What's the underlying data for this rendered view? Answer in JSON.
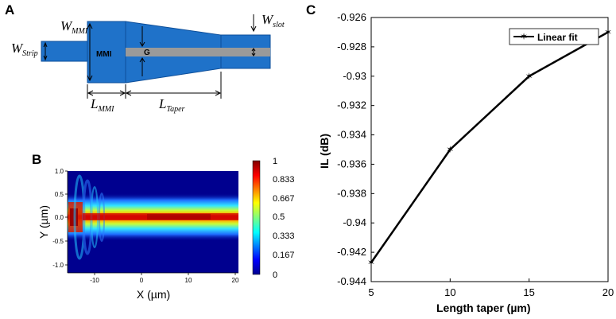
{
  "panel_labels": {
    "a": "A",
    "b": "B",
    "c": "C"
  },
  "diagram_a": {
    "labels": {
      "w_mmi_base": "W",
      "w_mmi_sub": "MMI",
      "w_strip_base": "W",
      "w_strip_sub": "Strip",
      "w_slot_base": "W",
      "w_slot_sub": "slot",
      "l_mmi_base": "L",
      "l_mmi_sub": "MMI",
      "l_taper_base": "L",
      "l_taper_sub": "Taper",
      "mmi_text": "MMI",
      "gap_text": "G"
    },
    "colors": {
      "waveguide": "#1f72c9",
      "waveguide_edge": "#0e4f9a",
      "slot": "#9a9a9a"
    }
  },
  "panel_b": {
    "xlabel": "X (µm)",
    "ylabel": "Y (µm)",
    "xticks": [
      "-10",
      "0",
      "10",
      "20"
    ],
    "yticks": [
      "1.0",
      "0.5",
      "0.0",
      "-0.5",
      "-1.0"
    ],
    "colorbar_ticks": [
      "1",
      "0.833",
      "0.667",
      "0.5",
      "0.333",
      "0.167",
      "0"
    ]
  },
  "chart_data": {
    "type": "line",
    "title": "",
    "xlabel": "Length taper (µm)",
    "ylabel": "IL (dB)",
    "x": [
      5,
      10,
      15,
      20
    ],
    "series": [
      {
        "name": "Linear fit",
        "values": [
          -0.9427,
          -0.935,
          -0.93,
          -0.927
        ],
        "color": "#000000",
        "marker_color": "#ff0000"
      }
    ],
    "xlim": [
      5,
      20
    ],
    "ylim": [
      -0.944,
      -0.926
    ],
    "xticks": [
      "5",
      "10",
      "15",
      "20"
    ],
    "yticks": [
      "-0.926",
      "-0.928",
      "-0.93",
      "-0.932",
      "-0.934",
      "-0.936",
      "-0.938",
      "-0.94",
      "-0.942",
      "-0.944"
    ],
    "legend": "Linear fit",
    "legend_position": "top-right",
    "grid": false
  }
}
